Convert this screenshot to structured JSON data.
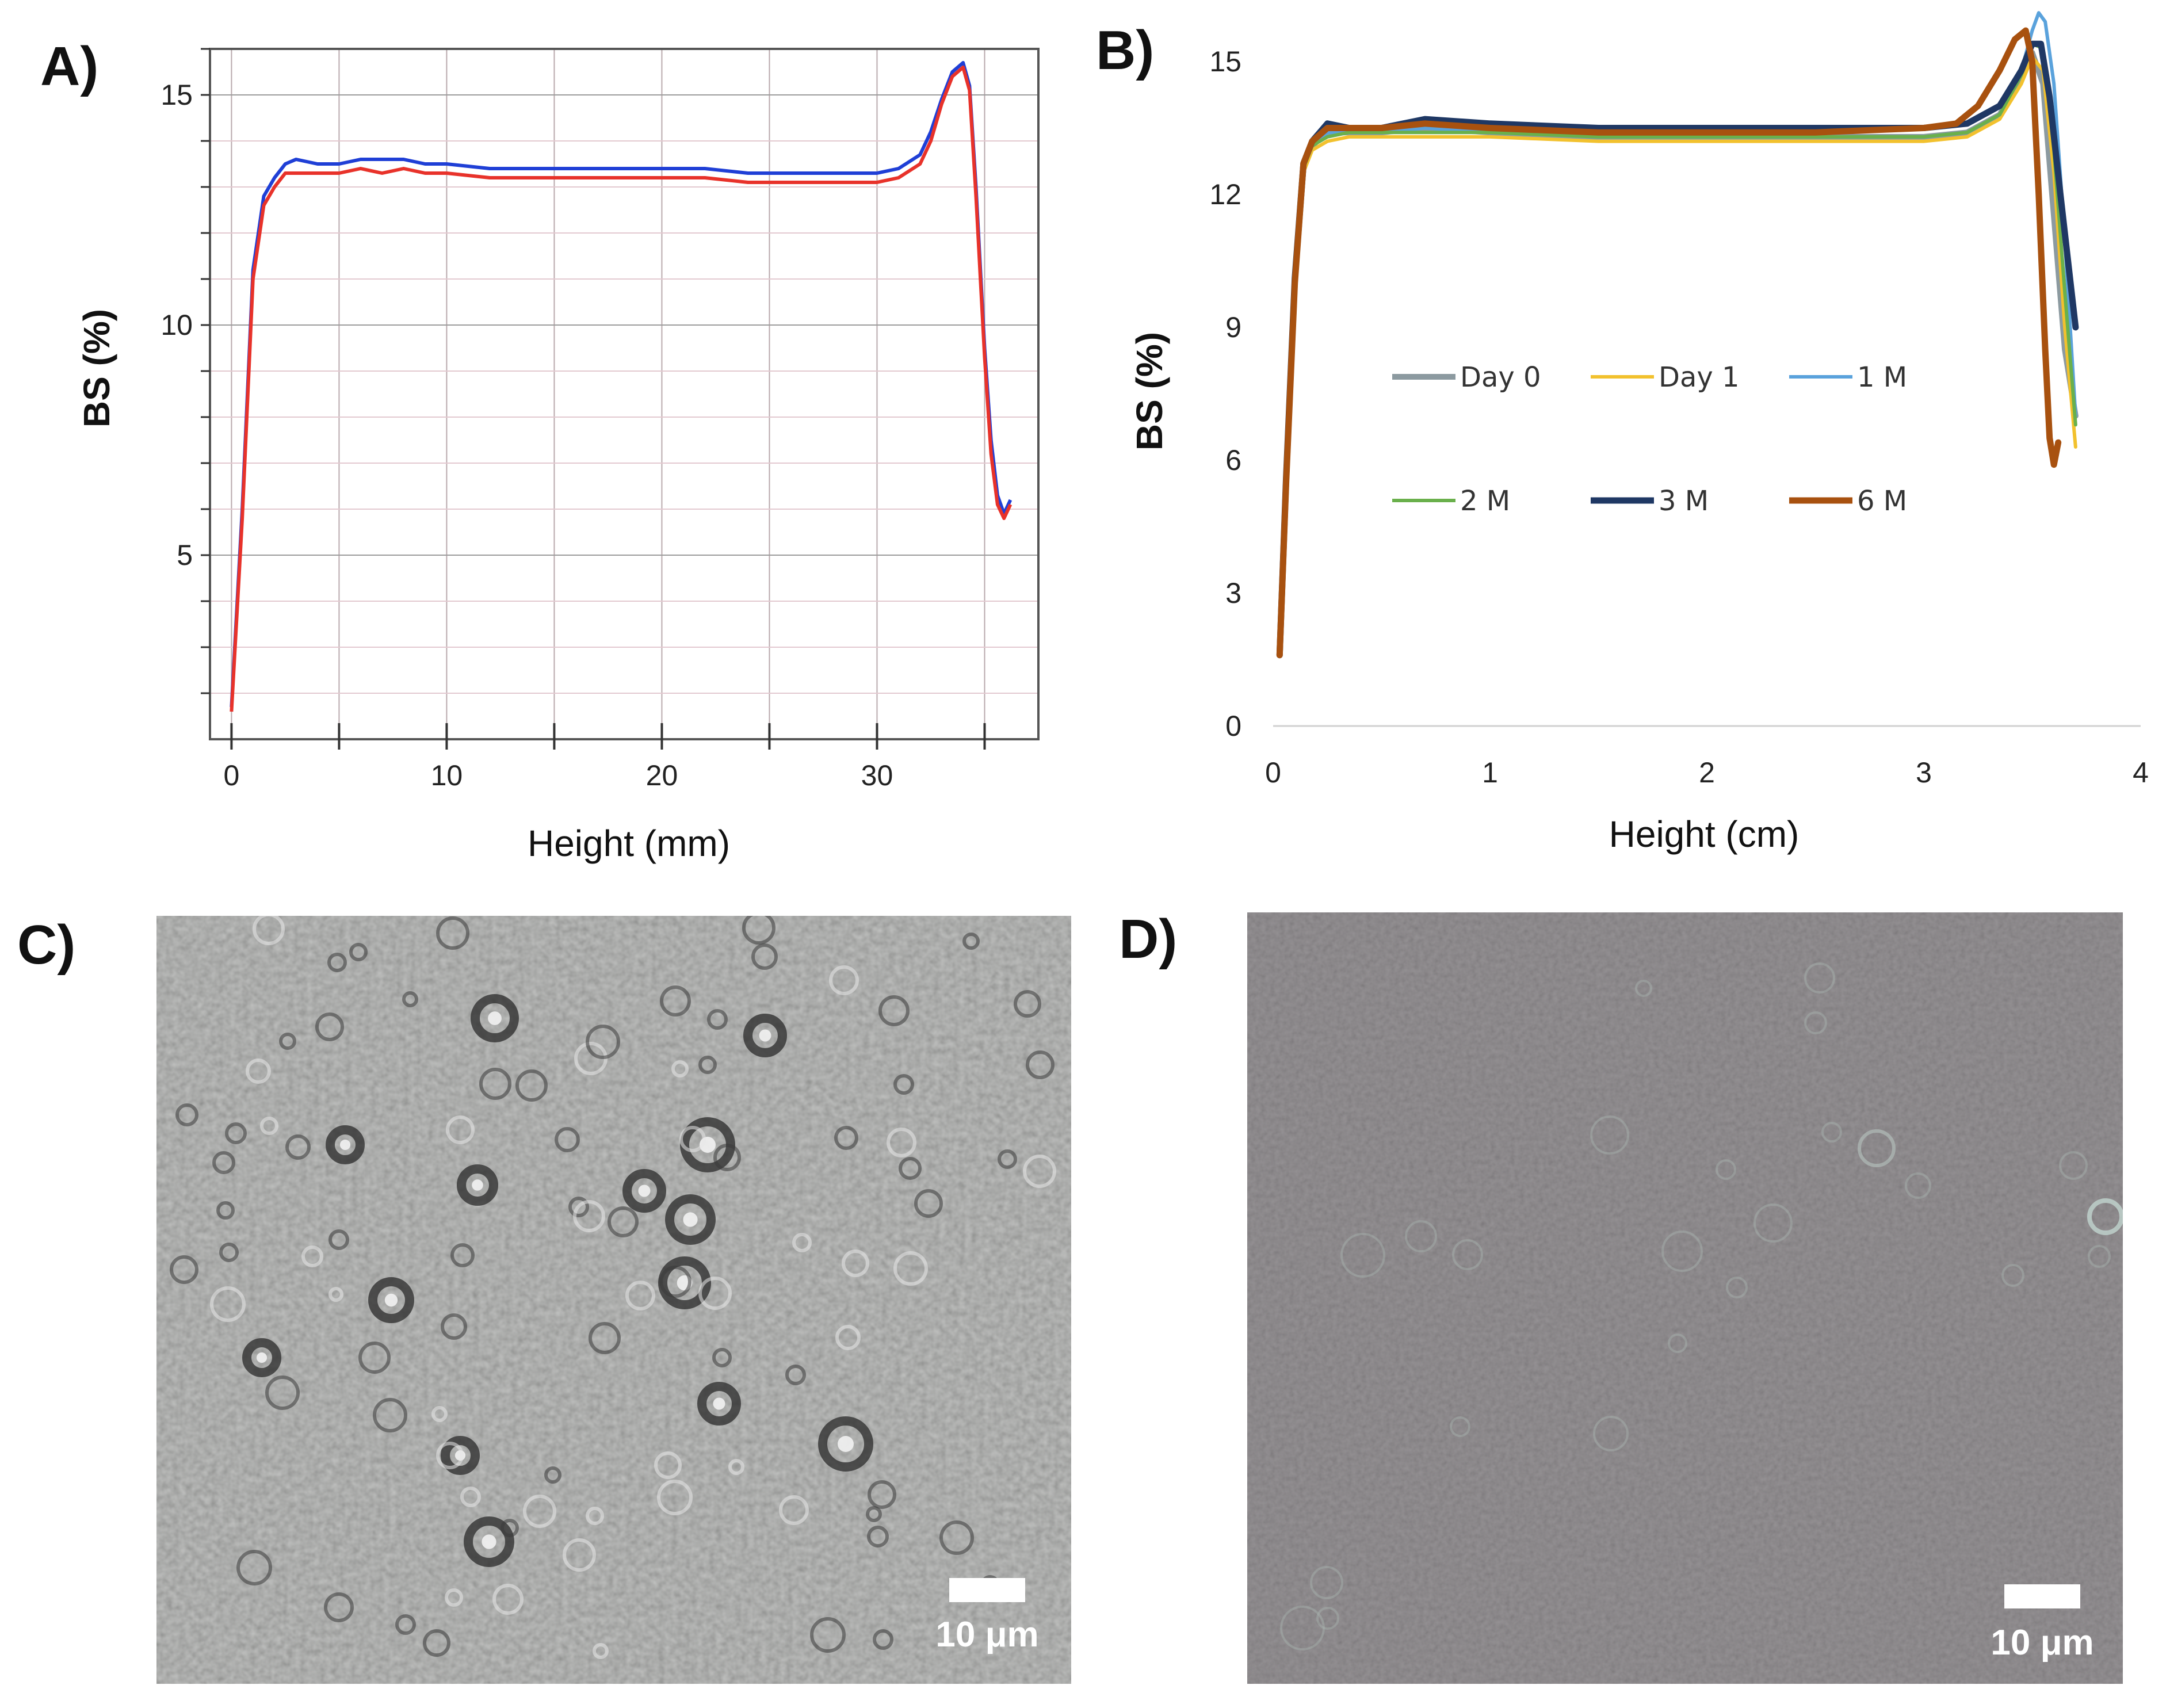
{
  "figure": {
    "panels": {
      "A": "A)",
      "B": "B)",
      "C": "C)",
      "D": "D)"
    }
  },
  "chart_data": [
    {
      "id": "A",
      "type": "line",
      "title": "",
      "xlabel": "Height (mm)",
      "ylabel": "BS (%)",
      "xlim": [
        -1,
        37.5
      ],
      "ylim": [
        1,
        16
      ],
      "xticks": [
        0,
        10,
        20,
        30
      ],
      "yticks": [
        5,
        10,
        15
      ],
      "grid": true,
      "series": [
        {
          "name": "blue",
          "color": "#1f3fd6",
          "x": [
            0,
            0.5,
            1,
            1.5,
            2,
            2.5,
            3,
            4,
            5,
            6,
            7,
            8,
            9,
            10,
            12,
            14,
            16,
            18,
            20,
            22,
            24,
            26,
            28,
            30,
            31,
            32,
            32.5,
            33,
            33.5,
            34,
            34.3,
            34.6,
            35,
            35.3,
            35.6,
            35.9,
            36.2
          ],
          "y": [
            1.7,
            6.0,
            11.2,
            12.8,
            13.2,
            13.5,
            13.6,
            13.5,
            13.5,
            13.6,
            13.6,
            13.6,
            13.5,
            13.5,
            13.4,
            13.4,
            13.4,
            13.4,
            13.4,
            13.4,
            13.3,
            13.3,
            13.3,
            13.3,
            13.4,
            13.7,
            14.2,
            14.9,
            15.5,
            15.7,
            15.2,
            13.0,
            9.5,
            7.5,
            6.3,
            5.9,
            6.2
          ]
        },
        {
          "name": "red",
          "color": "#e8322a",
          "x": [
            0,
            0.5,
            1,
            1.5,
            2,
            2.5,
            3,
            4,
            5,
            6,
            7,
            8,
            9,
            10,
            12,
            14,
            16,
            18,
            20,
            22,
            24,
            26,
            28,
            30,
            31,
            32,
            32.5,
            33,
            33.5,
            34,
            34.3,
            34.6,
            35,
            35.3,
            35.6,
            35.9,
            36.2
          ],
          "y": [
            1.6,
            5.8,
            11.0,
            12.6,
            13.0,
            13.3,
            13.3,
            13.3,
            13.3,
            13.4,
            13.3,
            13.4,
            13.3,
            13.3,
            13.2,
            13.2,
            13.2,
            13.2,
            13.2,
            13.2,
            13.1,
            13.1,
            13.1,
            13.1,
            13.2,
            13.5,
            14.0,
            14.8,
            15.4,
            15.6,
            15.1,
            12.8,
            9.3,
            7.2,
            6.1,
            5.8,
            6.1
          ]
        }
      ]
    },
    {
      "id": "B",
      "type": "line",
      "title": "",
      "xlabel": "Height (cm)",
      "ylabel": "BS (%)",
      "xlim": [
        0,
        4
      ],
      "ylim": [
        0,
        16
      ],
      "xticks": [
        0,
        1,
        2,
        3,
        4
      ],
      "yticks": [
        0,
        3,
        6,
        9,
        12,
        15
      ],
      "grid": false,
      "legend_position": "center",
      "series": [
        {
          "name": "Day 0",
          "color": "#8c9aa0",
          "width": 10,
          "x": [
            0.03,
            0.06,
            0.1,
            0.14,
            0.18,
            0.25,
            0.35,
            0.5,
            0.7,
            1.0,
            1.5,
            2.0,
            2.5,
            3.0,
            3.2,
            3.35,
            3.45,
            3.5,
            3.55,
            3.6,
            3.65,
            3.7
          ],
          "y": [
            1.6,
            5.5,
            10.0,
            12.6,
            13.1,
            13.4,
            13.4,
            13.4,
            13.5,
            13.4,
            13.3,
            13.3,
            13.3,
            13.3,
            13.4,
            13.8,
            14.6,
            15.2,
            14.5,
            11.5,
            8.5,
            7.0
          ]
        },
        {
          "name": "Day 1",
          "color": "#f2c12e",
          "width": 6,
          "x": [
            0.03,
            0.06,
            0.1,
            0.14,
            0.18,
            0.25,
            0.35,
            0.5,
            0.7,
            1.0,
            1.5,
            2.0,
            2.5,
            3.0,
            3.2,
            3.35,
            3.45,
            3.5,
            3.55,
            3.6,
            3.65,
            3.7
          ],
          "y": [
            1.6,
            5.4,
            9.9,
            12.5,
            13.0,
            13.2,
            13.3,
            13.3,
            13.3,
            13.3,
            13.2,
            13.2,
            13.2,
            13.2,
            13.3,
            13.7,
            14.5,
            15.1,
            14.8,
            12.5,
            9.0,
            6.3
          ]
        },
        {
          "name": "1 M",
          "color": "#5aa2dc",
          "width": 6,
          "x": [
            0.03,
            0.06,
            0.1,
            0.14,
            0.18,
            0.25,
            0.35,
            0.5,
            0.7,
            1.0,
            1.5,
            2.0,
            2.5,
            3.0,
            3.2,
            3.35,
            3.45,
            3.5,
            3.53,
            3.56,
            3.6,
            3.65,
            3.7
          ],
          "y": [
            1.6,
            5.5,
            10.0,
            12.6,
            13.1,
            13.4,
            13.4,
            13.4,
            13.5,
            13.4,
            13.3,
            13.3,
            13.3,
            13.3,
            13.4,
            13.8,
            14.8,
            15.7,
            16.1,
            15.9,
            14.5,
            11.0,
            7.0
          ]
        },
        {
          "name": "2 M",
          "color": "#6ab04c",
          "width": 6,
          "x": [
            0.03,
            0.06,
            0.1,
            0.14,
            0.18,
            0.25,
            0.35,
            0.5,
            0.7,
            1.0,
            1.5,
            2.0,
            2.5,
            3.0,
            3.2,
            3.35,
            3.45,
            3.5,
            3.55,
            3.6,
            3.65,
            3.7
          ],
          "y": [
            1.6,
            5.5,
            10.0,
            12.6,
            13.1,
            13.3,
            13.4,
            13.4,
            13.4,
            13.4,
            13.3,
            13.3,
            13.3,
            13.3,
            13.4,
            13.8,
            14.7,
            15.4,
            15.3,
            13.0,
            9.8,
            6.8
          ]
        },
        {
          "name": "3 M",
          "color": "#1f3864",
          "width": 11,
          "x": [
            0.03,
            0.06,
            0.1,
            0.14,
            0.18,
            0.25,
            0.35,
            0.5,
            0.7,
            1.0,
            1.5,
            2.0,
            2.5,
            3.0,
            3.2,
            3.35,
            3.45,
            3.5,
            3.54,
            3.58,
            3.63,
            3.7
          ],
          "y": [
            1.6,
            5.6,
            10.1,
            12.7,
            13.2,
            13.6,
            13.5,
            13.5,
            13.7,
            13.6,
            13.5,
            13.5,
            13.5,
            13.5,
            13.6,
            14.0,
            14.8,
            15.4,
            15.4,
            14.2,
            12.0,
            9.0
          ]
        },
        {
          "name": "6 M",
          "color": "#a8510f",
          "width": 11,
          "x": [
            0.03,
            0.06,
            0.1,
            0.14,
            0.18,
            0.25,
            0.35,
            0.5,
            0.7,
            1.0,
            1.5,
            2.0,
            2.5,
            3.0,
            3.15,
            3.25,
            3.35,
            3.42,
            3.47,
            3.5,
            3.53,
            3.56,
            3.58,
            3.6,
            3.62
          ],
          "y": [
            1.6,
            5.5,
            10.0,
            12.7,
            13.2,
            13.5,
            13.5,
            13.5,
            13.6,
            13.5,
            13.4,
            13.4,
            13.4,
            13.5,
            13.6,
            14.0,
            14.8,
            15.5,
            15.7,
            15.0,
            12.0,
            8.5,
            6.5,
            5.9,
            6.4
          ]
        }
      ]
    }
  ],
  "micrographs": {
    "C": {
      "scale_bar": "10 μm"
    },
    "D": {
      "scale_bar": "10 μm"
    }
  }
}
